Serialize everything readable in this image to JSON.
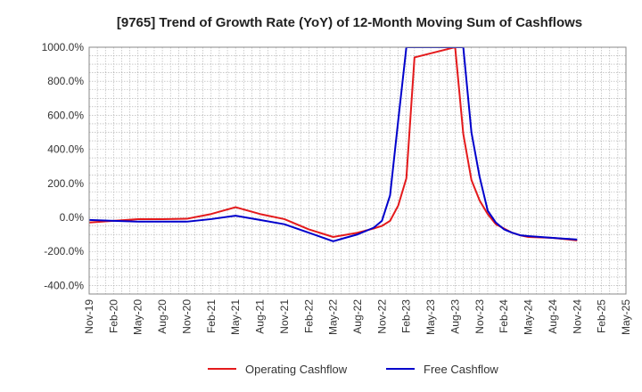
{
  "chart_data": {
    "type": "line",
    "title": "[9765]  Trend of Growth Rate (YoY) of 12-Month Moving Sum of Cashflows",
    "xlabel": "",
    "ylabel": "",
    "ylim": [
      -450,
      1000
    ],
    "y_ticks": [
      1000,
      800,
      600,
      400,
      200,
      0,
      -200,
      -400
    ],
    "y_tick_labels": [
      "1000.0%",
      "800.0%",
      "600.0%",
      "400.0%",
      "200.0%",
      "0.0%",
      "-200.0%",
      "-400.0%"
    ],
    "x_tick_labels": [
      "Nov-19",
      "Feb-20",
      "May-20",
      "Aug-20",
      "Nov-20",
      "Feb-21",
      "May-21",
      "Aug-21",
      "Nov-21",
      "Feb-22",
      "May-22",
      "Aug-22",
      "Nov-22",
      "Feb-23",
      "May-23",
      "Aug-23",
      "Nov-23",
      "Feb-24",
      "May-24",
      "Aug-24",
      "Nov-24",
      "Feb-25",
      "May-25"
    ],
    "grid": true,
    "legend_position": "bottom",
    "series": [
      {
        "name": "Operating Cashflow",
        "color": "#e41a1c",
        "x": [
          "Nov-19",
          "Feb-20",
          "May-20",
          "Aug-20",
          "Nov-20",
          "Feb-21",
          "May-21",
          "Aug-21",
          "Nov-21",
          "Feb-22",
          "May-22",
          "Aug-22",
          "Oct-22",
          "Nov-22",
          "Dec-22",
          "Jan-23",
          "Feb-23",
          "Mar-23",
          "Aug-23",
          "Sep-23",
          "Oct-23",
          "Nov-23",
          "Dec-23",
          "Jan-24",
          "Feb-24",
          "Mar-24",
          "Apr-24",
          "May-24",
          "Aug-24",
          "Nov-24"
        ],
        "values": [
          -30,
          -20,
          -10,
          -10,
          -8,
          20,
          60,
          20,
          -10,
          -70,
          -115,
          -90,
          -65,
          -50,
          -20,
          70,
          230,
          940,
          1000,
          490,
          220,
          100,
          20,
          -40,
          -65,
          -90,
          -105,
          -115,
          -120,
          -135
        ]
      },
      {
        "name": "Free Cashflow",
        "color": "#0000cc",
        "x": [
          "Nov-19",
          "Feb-20",
          "May-20",
          "Aug-20",
          "Nov-20",
          "Feb-21",
          "May-21",
          "Aug-21",
          "Nov-21",
          "Feb-22",
          "May-22",
          "Aug-22",
          "Oct-22",
          "Nov-22",
          "Dec-22",
          "Jan-23",
          "Feb-23",
          "Sep-23",
          "Oct-23",
          "Nov-23",
          "Dec-23",
          "Jan-24",
          "Feb-24",
          "Mar-24",
          "Apr-24",
          "May-24",
          "Aug-24",
          "Nov-24"
        ],
        "values": [
          -15,
          -20,
          -25,
          -25,
          -25,
          -10,
          10,
          -15,
          -40,
          -90,
          -140,
          -100,
          -60,
          -20,
          130,
          570,
          1000,
          1000,
          500,
          240,
          40,
          -30,
          -70,
          -90,
          -105,
          -110,
          -120,
          -130
        ]
      }
    ]
  }
}
